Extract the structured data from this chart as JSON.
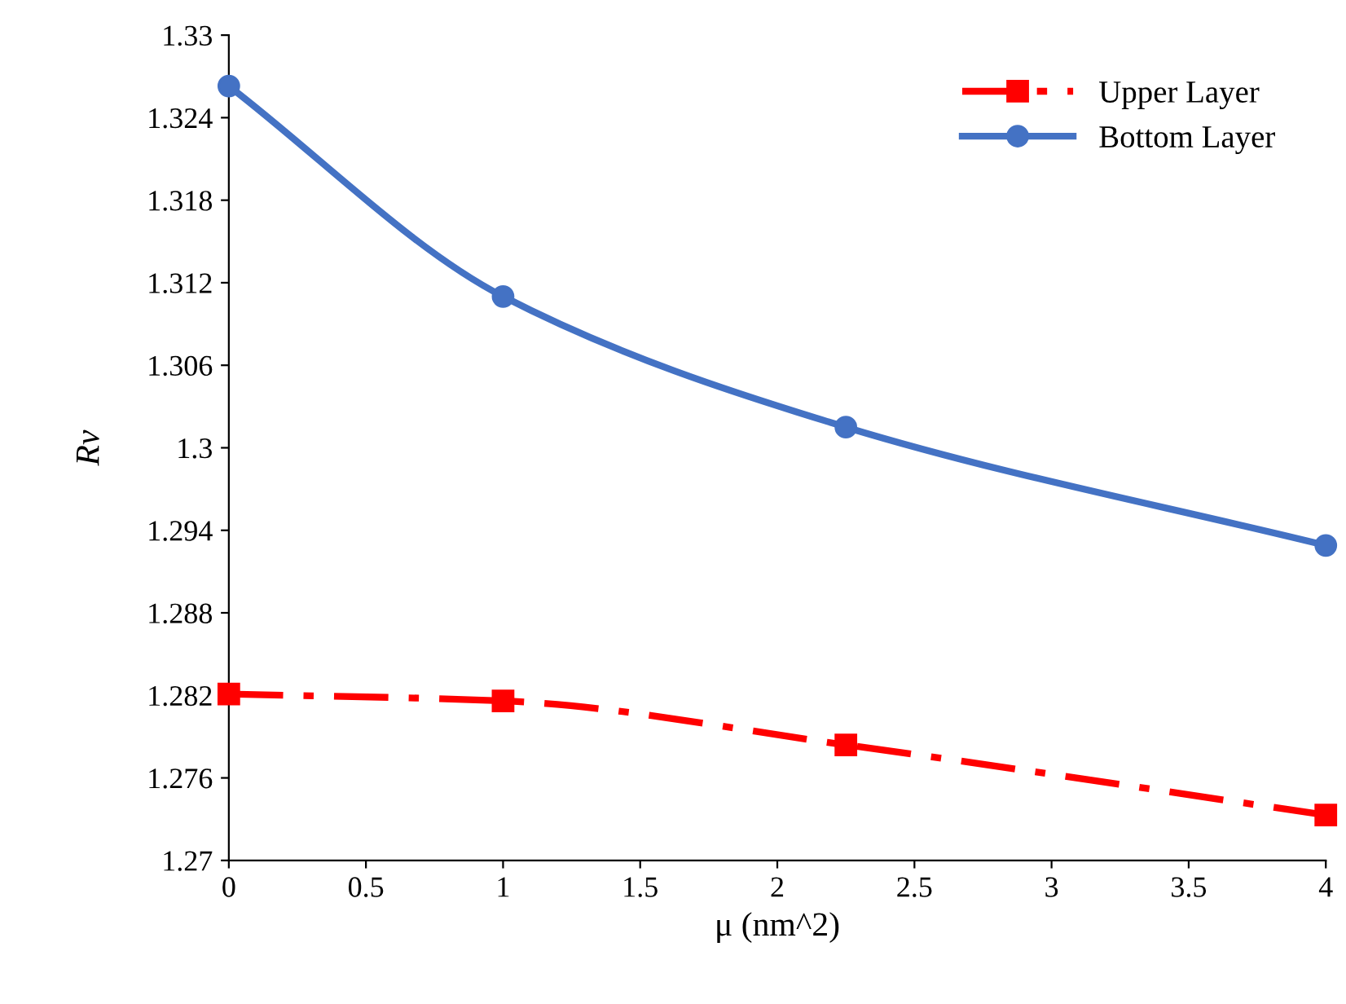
{
  "chart_data": {
    "type": "line",
    "xlabel": "μ (nm^2)",
    "ylabel": "Rv",
    "x": [
      0,
      1,
      2.25,
      4
    ],
    "series": [
      {
        "name": "Upper Layer",
        "color": "#ff0000",
        "marker": "square",
        "line_style": "dashdot",
        "values": [
          1.2821,
          1.2816,
          1.2784,
          1.2733
        ]
      },
      {
        "name": "Bottom Layer",
        "color": "#4472c4",
        "marker": "circle",
        "line_style": "solid",
        "values": [
          1.3263,
          1.311,
          1.3015,
          1.2929
        ]
      }
    ],
    "xlim": [
      0,
      4
    ],
    "xticks": [
      0,
      0.5,
      1,
      1.5,
      2,
      2.5,
      3,
      3.5,
      4
    ],
    "ylim": [
      1.27,
      1.33
    ],
    "yticks": [
      1.27,
      1.276,
      1.282,
      1.288,
      1.294,
      1.3,
      1.306,
      1.312,
      1.318,
      1.324,
      1.33
    ],
    "grid": false,
    "legend": "top right"
  }
}
